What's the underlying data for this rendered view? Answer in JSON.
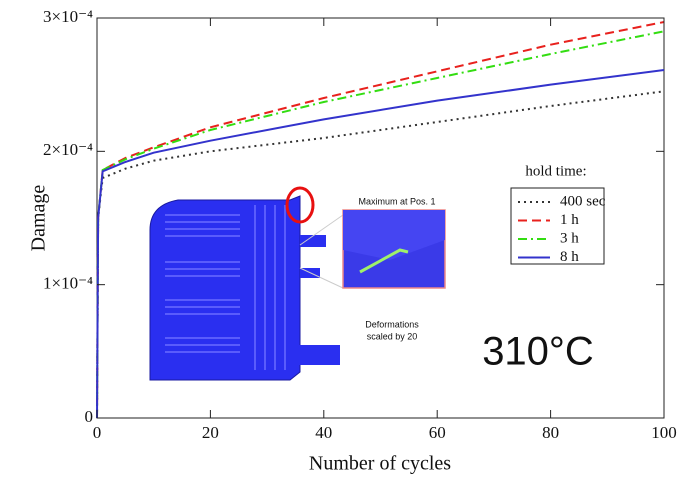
{
  "chart_data": {
    "type": "line",
    "x_label": "Number of cycles",
    "y_label": "Damage",
    "x": [
      0,
      0.2,
      1,
      5,
      10,
      20,
      40,
      60,
      80,
      100
    ],
    "xlim": [
      0,
      100
    ],
    "xticks": [
      0,
      20,
      40,
      60,
      80,
      100
    ],
    "ylim": [
      0,
      0.0003
    ],
    "yticks": [
      0,
      {
        "value": 0.0001,
        "label": "1×10⁻⁴"
      },
      {
        "value": 0.0002,
        "label": "2×10⁻⁴"
      },
      {
        "value": 0.0003,
        "label": "3×10⁻⁴"
      }
    ],
    "legend_title": "hold time:",
    "legend": "right",
    "series": [
      {
        "name": "400 sec",
        "color": "#333333",
        "dash": "dotted",
        "values": [
          0,
          0.00015,
          0.00018,
          0.000187,
          0.000193,
          0.0002,
          0.00021,
          0.000222,
          0.000234,
          0.000245
        ]
      },
      {
        "name": "1 h",
        "color": "#e8211d",
        "dash": "dashed",
        "values": [
          0,
          0.00015,
          0.000186,
          0.000195,
          0.000203,
          0.000218,
          0.00024,
          0.00026,
          0.00028,
          0.000297
        ]
      },
      {
        "name": "3 h",
        "color": "#33dd11",
        "dash": "dashdot",
        "values": [
          0,
          0.00015,
          0.000186,
          0.000194,
          0.000202,
          0.000216,
          0.000237,
          0.000255,
          0.000273,
          0.00029
        ]
      },
      {
        "name": "8 h",
        "color": "#3333cc",
        "dash": "solid",
        "values": [
          0,
          0.00015,
          0.000185,
          0.000192,
          0.000199,
          0.000208,
          0.000224,
          0.000238,
          0.00025,
          0.000261
        ]
      }
    ],
    "annotations": {
      "temperature": "310°C",
      "inset_title": "Maximum at Pos. 1",
      "inset_note": [
        "Deformations",
        "scaled by 20"
      ]
    }
  }
}
